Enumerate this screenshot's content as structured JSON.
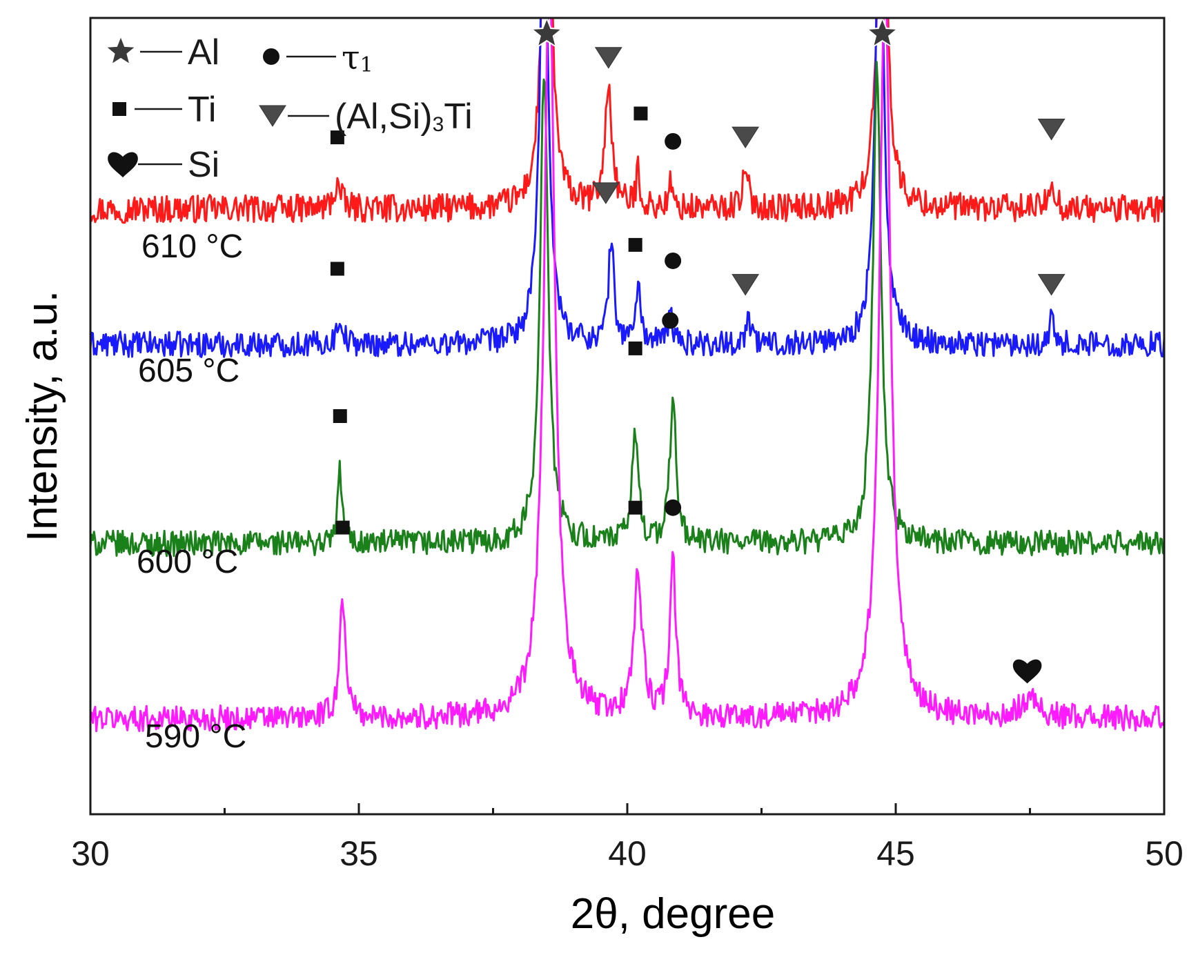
{
  "chart_data": {
    "type": "line",
    "title": "",
    "xlabel": "2θ, degree",
    "ylabel": "Intensity, a.u.",
    "xlim": [
      30,
      50
    ],
    "ylim": [
      0,
      100
    ],
    "x_ticks": [
      30,
      35,
      40,
      45,
      50
    ],
    "x_tick_labels": [
      "30",
      "35",
      "40",
      "45",
      "50"
    ],
    "grid": false,
    "legend_position": "top-left",
    "legend": [
      {
        "symbol": "star",
        "glyph": "★",
        "label": "Al"
      },
      {
        "symbol": "square",
        "glyph": "■",
        "label": "Ti"
      },
      {
        "symbol": "heart",
        "glyph": "♥",
        "label": "Si"
      },
      {
        "symbol": "circle",
        "glyph": "●",
        "label": "τ",
        "label_sub": "1"
      },
      {
        "symbol": "triangle-down",
        "glyph": "▼",
        "label": "(Al,Si)",
        "label_sub": "3",
        "label_suffix": "Ti"
      }
    ],
    "dash": "—",
    "series": [
      {
        "name": "610 °C",
        "color": "#ff1a1a",
        "baseline": 76,
        "noise": 1.1,
        "peaks": [
          {
            "x": 34.6,
            "h": 3,
            "w": 0.08
          },
          {
            "x": 38.5,
            "h": 60,
            "w": 0.09
          },
          {
            "x": 39.65,
            "h": 15,
            "w": 0.08
          },
          {
            "x": 40.2,
            "h": 5,
            "w": 0.04
          },
          {
            "x": 40.8,
            "h": 3,
            "w": 0.04
          },
          {
            "x": 42.2,
            "h": 4,
            "w": 0.08
          },
          {
            "x": 44.75,
            "h": 60,
            "w": 0.09
          },
          {
            "x": 47.9,
            "h": 4,
            "w": 0.06
          }
        ],
        "markers": [
          {
            "x": 34.6,
            "y": 85,
            "symbol": "square"
          },
          {
            "x": 38.5,
            "y": 98,
            "symbol": "star"
          },
          {
            "x": 39.65,
            "y": 95,
            "symbol": "triangle-down"
          },
          {
            "x": 40.25,
            "y": 88,
            "symbol": "square"
          },
          {
            "x": 40.85,
            "y": 84.5,
            "symbol": "circle"
          },
          {
            "x": 42.2,
            "y": 85,
            "symbol": "triangle-down"
          },
          {
            "x": 44.75,
            "y": 98,
            "symbol": "star"
          },
          {
            "x": 47.9,
            "y": 86,
            "symbol": "triangle-down"
          }
        ]
      },
      {
        "name": "605 °C",
        "color": "#1a1aff",
        "baseline": 59,
        "noise": 1.0,
        "peaks": [
          {
            "x": 34.65,
            "h": 3.5,
            "w": 0.06
          },
          {
            "x": 38.45,
            "h": 60,
            "w": 0.09
          },
          {
            "x": 39.7,
            "h": 13,
            "w": 0.06
          },
          {
            "x": 40.2,
            "h": 7,
            "w": 0.06
          },
          {
            "x": 40.8,
            "h": 4,
            "w": 0.05
          },
          {
            "x": 42.25,
            "h": 3.5,
            "w": 0.05
          },
          {
            "x": 44.7,
            "h": 60,
            "w": 0.09
          },
          {
            "x": 47.9,
            "h": 3,
            "w": 0.06
          }
        ],
        "markers": [
          {
            "x": 34.6,
            "y": 68.5,
            "symbol": "square"
          },
          {
            "x": 39.6,
            "y": 78,
            "symbol": "triangle-down"
          },
          {
            "x": 40.15,
            "y": 71.5,
            "symbol": "square"
          },
          {
            "x": 40.85,
            "y": 69.5,
            "symbol": "circle"
          },
          {
            "x": 42.2,
            "y": 66.5,
            "symbol": "triangle-down"
          },
          {
            "x": 47.9,
            "y": 66.5,
            "symbol": "triangle-down"
          }
        ]
      },
      {
        "name": "600 °C",
        "color": "#1a801a",
        "baseline": 34,
        "noise": 1.0,
        "peaks": [
          {
            "x": 34.65,
            "h": 9,
            "w": 0.05
          },
          {
            "x": 38.45,
            "h": 60,
            "w": 0.09
          },
          {
            "x": 40.15,
            "h": 14,
            "w": 0.07
          },
          {
            "x": 40.85,
            "h": 18,
            "w": 0.07
          },
          {
            "x": 44.65,
            "h": 60,
            "w": 0.09
          }
        ],
        "markers": [
          {
            "x": 34.65,
            "y": 50,
            "symbol": "square"
          },
          {
            "x": 40.15,
            "y": 58.5,
            "symbol": "square"
          },
          {
            "x": 40.8,
            "y": 62,
            "symbol": "circle"
          }
        ]
      },
      {
        "name": "590 °C",
        "color": "#ff1aff",
        "baseline": 12,
        "noise": 1.0,
        "peaks": [
          {
            "x": 34.7,
            "h": 15,
            "w": 0.07
          },
          {
            "x": 38.55,
            "h": 95,
            "w": 0.12
          },
          {
            "x": 40.2,
            "h": 18,
            "w": 0.09
          },
          {
            "x": 40.85,
            "h": 19,
            "w": 0.07
          },
          {
            "x": 44.8,
            "h": 95,
            "w": 0.12
          },
          {
            "x": 47.5,
            "h": 2.5,
            "w": 0.2
          }
        ],
        "markers": [
          {
            "x": 34.7,
            "y": 36,
            "symbol": "square"
          },
          {
            "x": 40.15,
            "y": 38.5,
            "symbol": "square"
          },
          {
            "x": 40.85,
            "y": 38.5,
            "symbol": "circle"
          },
          {
            "x": 47.45,
            "y": 18,
            "symbol": "heart"
          }
        ]
      }
    ]
  }
}
